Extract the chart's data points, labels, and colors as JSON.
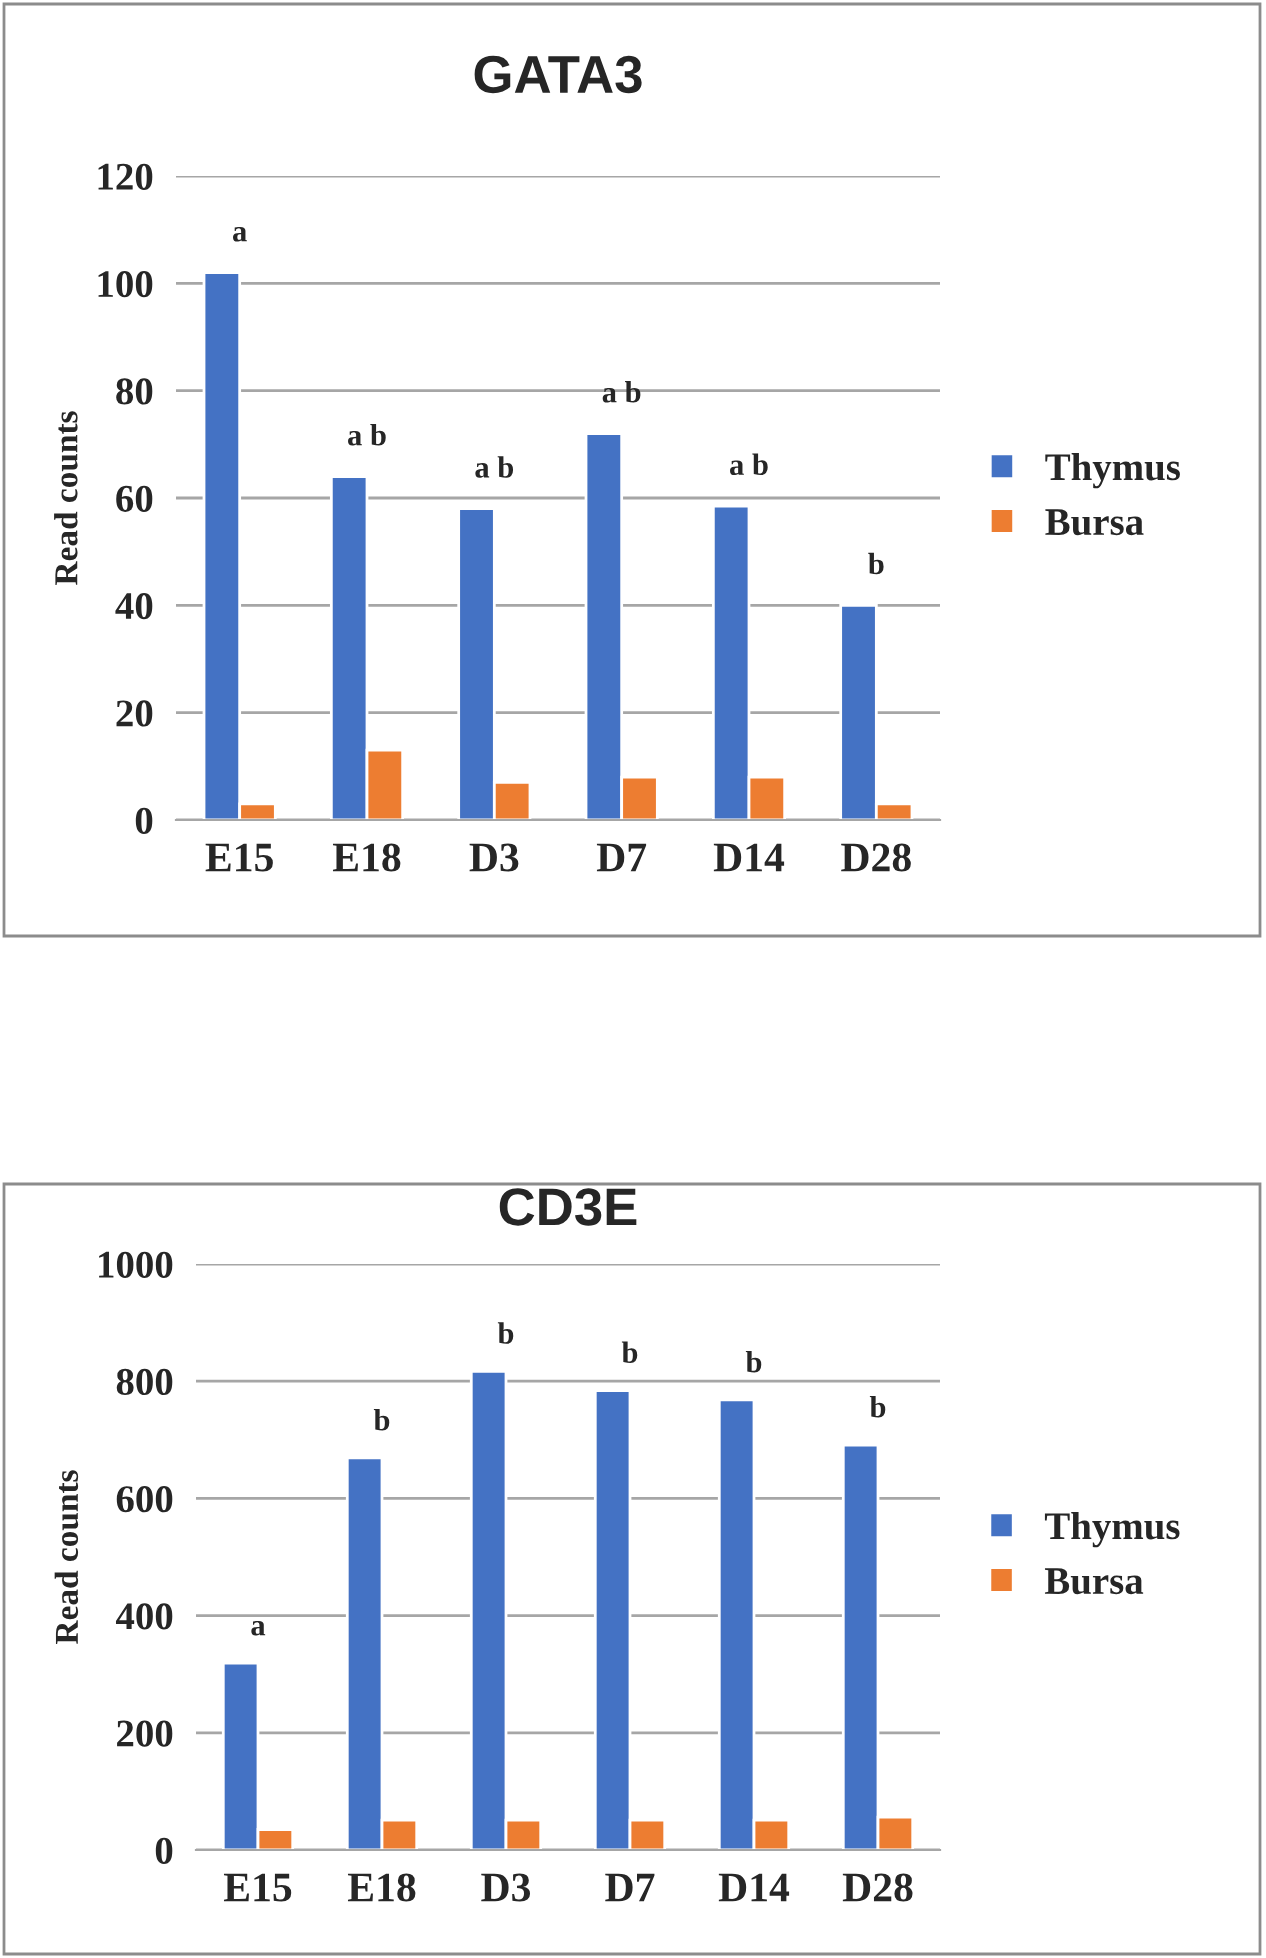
{
  "chart_data": [
    {
      "type": "bar",
      "title": "GATA3",
      "ylabel": "Read counts",
      "categories": [
        "E15",
        "E18",
        "D3",
        "D7",
        "D14",
        "D28"
      ],
      "series": [
        {
          "name": "Thymus",
          "color": "#4472c4",
          "values": [
            102,
            64,
            58,
            72,
            58.5,
            40
          ]
        },
        {
          "name": "Bursa",
          "color": "#ed7d31",
          "values": [
            3,
            13,
            7,
            8,
            8,
            3
          ]
        }
      ],
      "ylim": [
        0,
        120
      ],
      "yticks": [
        0,
        20,
        40,
        60,
        80,
        100,
        120
      ],
      "grid": "y",
      "legend": "right",
      "annotations": [
        "a",
        "a b",
        "a b",
        "a b",
        "a b",
        "b"
      ]
    },
    {
      "type": "bar",
      "title": "CD3E",
      "ylabel": "Read counts",
      "categories": [
        "E15",
        "E18",
        "D3",
        "D7",
        "D14",
        "D28"
      ],
      "series": [
        {
          "name": "Thymus",
          "color": "#4472c4",
          "values": [
            319,
            669,
            817,
            784,
            768,
            691
          ]
        },
        {
          "name": "Bursa",
          "color": "#ed7d31",
          "values": [
            35,
            51,
            51,
            51,
            51,
            56
          ]
        }
      ],
      "ylim": [
        0,
        1000
      ],
      "yticks": [
        0,
        200,
        400,
        600,
        800,
        1000
      ],
      "grid": "y",
      "legend": "right",
      "annotations": [
        "a",
        "b",
        "b",
        "b",
        "b",
        "b"
      ]
    }
  ]
}
